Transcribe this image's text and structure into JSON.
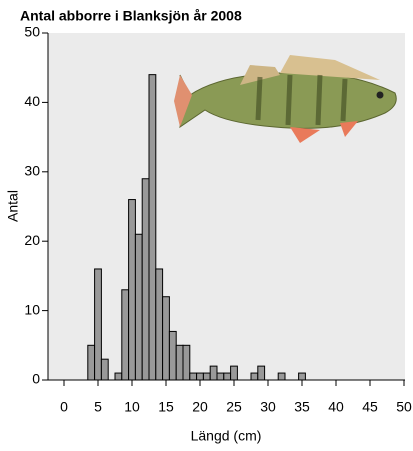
{
  "chart_data": {
    "type": "histogram",
    "title": "Antal abborre i Blanksjön år 2008",
    "x_label": "Längd (cm)",
    "y_label": "Antal",
    "bins": [
      3.5,
      4.5,
      5.5,
      6.5,
      7.5,
      8.5,
      9.5,
      10.5,
      11.5,
      12.5,
      13.5,
      14.5,
      15.5,
      16.5,
      17.5,
      18.5,
      19.5,
      20.5,
      21.5,
      22.5,
      23.5,
      24.5,
      25.5,
      26.5,
      27.5,
      28.5,
      29.5,
      30.5,
      31.5,
      32.5,
      33.5,
      34.5,
      35.5
    ],
    "values": [
      5,
      16,
      3,
      0,
      1,
      13,
      26,
      21,
      29,
      44,
      16,
      12,
      7,
      5,
      5,
      1,
      1,
      1,
      2,
      1,
      1,
      2,
      0,
      0,
      1,
      2,
      0,
      0,
      1,
      0,
      0,
      1
    ],
    "color": "#999999",
    "xlim": [
      0,
      50
    ],
    "ylim": [
      0,
      50
    ],
    "xticks": [
      0,
      5,
      10,
      15,
      20,
      25,
      30,
      35,
      40,
      45,
      50
    ],
    "yticks": [
      0,
      10,
      20,
      30,
      40,
      50
    ]
  }
}
